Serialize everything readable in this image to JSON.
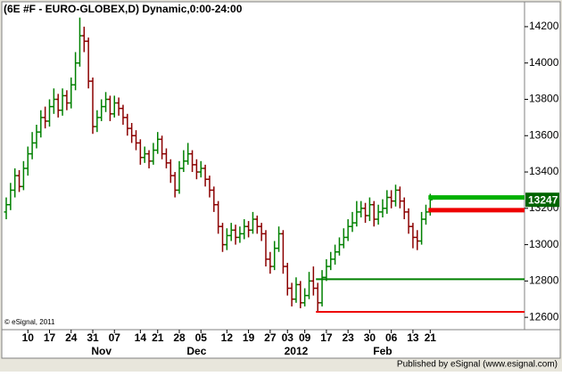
{
  "chart_data": {
    "type": "ohlc",
    "title": "(6E #F - EURO-GLOBEX,D) Dynamic,0:00-24:00",
    "copyright": "© eSignal, 2011",
    "footer": "Published by eSignal (www.esignal.com)",
    "categories": [
      null,
      null,
      null,
      null,
      null,
      "10",
      null,
      null,
      null,
      null,
      "17",
      null,
      null,
      null,
      null,
      "24",
      null,
      null,
      null,
      null,
      "31",
      null,
      null,
      null,
      null,
      "07",
      null,
      null,
      null,
      null,
      null,
      "14",
      null,
      null,
      null,
      "21",
      null,
      null,
      null,
      null,
      "28",
      null,
      null,
      null,
      null,
      "05",
      null,
      null,
      null,
      null,
      null,
      "12",
      null,
      null,
      null,
      null,
      "19",
      null,
      null,
      null,
      null,
      "27",
      null,
      null,
      null,
      "03",
      null,
      null,
      null,
      "09",
      null,
      null,
      null,
      null,
      "17",
      null,
      null,
      null,
      null,
      "23",
      null,
      null,
      null,
      null,
      "30",
      null,
      null,
      null,
      null,
      "06",
      null,
      null,
      null,
      null,
      "13",
      null,
      null,
      null,
      "21"
    ],
    "x_group_labels": [
      {
        "value": 22,
        "label": "Nov"
      },
      {
        "value": 44,
        "label": "Dec"
      },
      {
        "value": 67,
        "label": "2012"
      },
      {
        "value": 87,
        "label": "Feb"
      }
    ],
    "open": [
      13180,
      13220,
      13300,
      13380,
      13320,
      13420,
      13500,
      13560,
      13620,
      13700,
      13680,
      13760,
      13800,
      13740,
      13820,
      13780,
      13880,
      14000,
      14150,
      14120,
      13900,
      13650,
      13700,
      13760,
      13800,
      13720,
      13780,
      13750,
      13700,
      13640,
      13600,
      13560,
      13480,
      13500,
      13460,
      13520,
      13580,
      13500,
      13450,
      13380,
      13300,
      13420,
      13460,
      13500,
      13440,
      13400,
      13420,
      13360,
      13300,
      13220,
      13100,
      13000,
      13050,
      13080,
      13040,
      13060,
      13100,
      13080,
      13140,
      13100,
      13060,
      12920,
      12880,
      12980,
      13060,
      12880,
      12760,
      12700,
      12780,
      12680,
      12720,
      12800,
      12760,
      12680,
      12820,
      12880,
      12920,
      12960,
      13000,
      13040,
      13100,
      13120,
      13180,
      13200,
      13160,
      13220,
      13140,
      13180,
      13200,
      13260,
      13240,
      13300,
      13240,
      13180,
      13100,
      13040,
      13020,
      13140,
      13180
    ],
    "high": [
      13260,
      13340,
      13420,
      13410,
      13460,
      13540,
      13620,
      13660,
      13740,
      13760,
      13800,
      13860,
      13830,
      13860,
      13850,
      13920,
      14060,
      14250,
      14200,
      14140,
      13920,
      13740,
      13800,
      13840,
      13820,
      13820,
      13810,
      13770,
      13720,
      13670,
      13630,
      13580,
      13540,
      13520,
      13560,
      13620,
      13600,
      13530,
      13470,
      13400,
      13460,
      13520,
      13560,
      13520,
      13470,
      13460,
      13440,
      13380,
      13320,
      13240,
      13120,
      13090,
      13120,
      13110,
      13100,
      13140,
      13130,
      13180,
      13160,
      13120,
      13080,
      12960,
      13020,
      13100,
      13080,
      12900,
      12790,
      12820,
      12800,
      12760,
      12850,
      12880,
      12790,
      12860,
      12920,
      12960,
      13000,
      13040,
      13090,
      13140,
      13180,
      13240,
      13240,
      13230,
      13260,
      13240,
      13220,
      13250,
      13300,
      13300,
      13330,
      13320,
      13260,
      13200,
      13120,
      13080,
      13180,
      13220,
      13280
    ],
    "low": [
      13140,
      13190,
      13260,
      13290,
      13300,
      13380,
      13470,
      13530,
      13590,
      13640,
      13650,
      13720,
      13700,
      13710,
      13740,
      13750,
      13850,
      13980,
      14060,
      13860,
      13610,
      13620,
      13680,
      13730,
      13680,
      13700,
      13710,
      13660,
      13600,
      13560,
      13520,
      13440,
      13450,
      13420,
      13440,
      13500,
      13470,
      13420,
      13340,
      13260,
      13280,
      13400,
      13440,
      13400,
      13360,
      13370,
      13320,
      13260,
      13180,
      13060,
      12960,
      12970,
      13020,
      13000,
      13010,
      13030,
      13040,
      13060,
      13060,
      13020,
      12880,
      12840,
      12860,
      12960,
      12840,
      12720,
      12660,
      12680,
      12650,
      12660,
      12700,
      12720,
      12630,
      12660,
      12800,
      12860,
      12890,
      12940,
      12980,
      13020,
      13070,
      13100,
      13150,
      13120,
      13130,
      13100,
      13110,
      13150,
      13170,
      13200,
      13210,
      13200,
      13140,
      13060,
      12980,
      12970,
      13000,
      13110,
      13160
    ],
    "close": [
      13220,
      13300,
      13380,
      13320,
      13420,
      13500,
      13560,
      13620,
      13700,
      13680,
      13760,
      13800,
      13740,
      13820,
      13780,
      13880,
      14000,
      14150,
      14120,
      13900,
      13650,
      13700,
      13760,
      13800,
      13720,
      13780,
      13750,
      13700,
      13640,
      13600,
      13560,
      13480,
      13500,
      13460,
      13520,
      13580,
      13500,
      13450,
      13380,
      13300,
      13420,
      13460,
      13500,
      13440,
      13400,
      13420,
      13360,
      13300,
      13220,
      13100,
      13000,
      13050,
      13080,
      13040,
      13060,
      13100,
      13080,
      13140,
      13100,
      13060,
      12920,
      12880,
      12980,
      13060,
      12880,
      12760,
      12700,
      12780,
      12680,
      12720,
      12800,
      12760,
      12680,
      12820,
      12880,
      12920,
      12960,
      13000,
      13040,
      13100,
      13120,
      13180,
      13200,
      13160,
      13220,
      13140,
      13180,
      13200,
      13260,
      13240,
      13300,
      13240,
      13180,
      13100,
      13040,
      13020,
      13140,
      13180,
      13247
    ],
    "up_color": "#008000",
    "down_color": "#8b0000",
    "last_color": "#006400",
    "levels": [
      {
        "value": 13260,
        "color": "#00b000",
        "from": 98,
        "width": 5
      },
      {
        "value": 13190,
        "color": "#ee0000",
        "from": 98,
        "width": 5
      },
      {
        "value": 12810,
        "color": "#008000",
        "from": 72,
        "width": 2
      },
      {
        "value": 12630,
        "color": "#ee0000",
        "from": 72,
        "width": 2
      }
    ],
    "ylim": [
      12532,
      14337
    ],
    "yticks": [
      12600,
      12800,
      13000,
      13200,
      13400,
      13600,
      13800,
      14000,
      14200
    ],
    "grid": false
  }
}
